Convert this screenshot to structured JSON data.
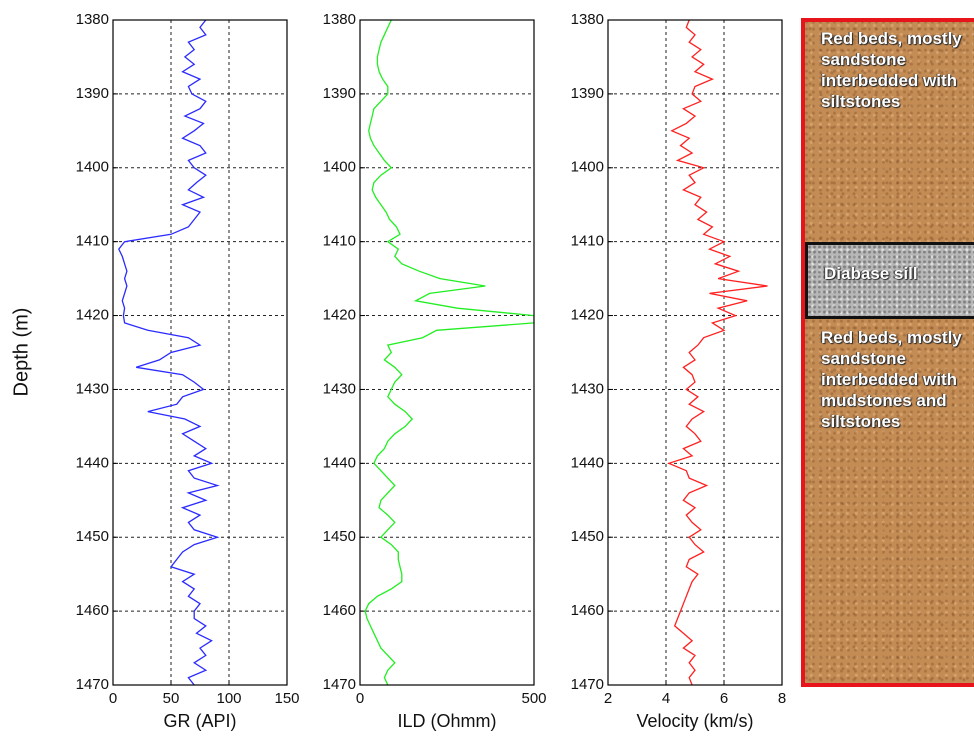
{
  "chart_data": [
    {
      "type": "line",
      "x_label": "GR (API)",
      "y_label": "Depth (m)",
      "color": "#2b2bff",
      "xlim": [
        0,
        150
      ],
      "xticks": [
        0,
        50,
        100,
        150
      ],
      "ylim": [
        1380,
        1470
      ],
      "yticks": [
        1380,
        1390,
        1400,
        1410,
        1420,
        1430,
        1440,
        1450,
        1460,
        1470
      ],
      "y_reversed": true,
      "grid": true,
      "y": [
        1380,
        1381,
        1382,
        1383,
        1384,
        1385,
        1386,
        1387,
        1388,
        1389,
        1390,
        1391,
        1392,
        1393,
        1394,
        1395,
        1396,
        1397,
        1398,
        1399,
        1400,
        1401,
        1402,
        1403,
        1404,
        1405,
        1406,
        1407,
        1408,
        1409,
        1410,
        1411,
        1412,
        1413,
        1414,
        1415,
        1416,
        1417,
        1418,
        1419,
        1420,
        1421,
        1422,
        1423,
        1424,
        1425,
        1426,
        1427,
        1428,
        1429,
        1430,
        1431,
        1432,
        1433,
        1434,
        1435,
        1436,
        1437,
        1438,
        1439,
        1440,
        1441,
        1442,
        1443,
        1444,
        1445,
        1446,
        1447,
        1448,
        1449,
        1450,
        1451,
        1452,
        1453,
        1454,
        1455,
        1456,
        1457,
        1458,
        1459,
        1460,
        1461,
        1462,
        1463,
        1464,
        1465,
        1466,
        1467,
        1468,
        1469,
        1470
      ],
      "values": [
        80,
        75,
        80,
        65,
        70,
        62,
        70,
        60,
        75,
        65,
        68,
        80,
        75,
        62,
        78,
        70,
        60,
        75,
        80,
        65,
        70,
        80,
        72,
        65,
        78,
        60,
        75,
        70,
        65,
        50,
        10,
        5,
        8,
        10,
        12,
        10,
        12,
        10,
        8,
        10,
        9,
        10,
        30,
        65,
        75,
        50,
        40,
        20,
        60,
        70,
        78,
        60,
        55,
        30,
        62,
        75,
        60,
        70,
        80,
        70,
        85,
        65,
        70,
        90,
        65,
        80,
        60,
        75,
        65,
        70,
        90,
        70,
        60,
        55,
        50,
        70,
        60,
        70,
        65,
        75,
        70,
        70,
        80,
        72,
        85,
        75,
        80,
        70,
        80,
        65,
        70
      ]
    },
    {
      "type": "line",
      "x_label": "ILD (Ohmm)",
      "color": "#22ee22",
      "xlim": [
        0,
        500
      ],
      "xticks": [
        0,
        500
      ],
      "ylim": [
        1380,
        1470
      ],
      "yticks": [
        1380,
        1390,
        1400,
        1410,
        1420,
        1430,
        1440,
        1450,
        1460,
        1470
      ],
      "y_reversed": true,
      "grid": true,
      "y": [
        1380,
        1381,
        1382,
        1383,
        1384,
        1385,
        1386,
        1387,
        1388,
        1389,
        1390,
        1391,
        1392,
        1393,
        1394,
        1395,
        1396,
        1397,
        1398,
        1399,
        1400,
        1401,
        1402,
        1403,
        1404,
        1405,
        1406,
        1407,
        1408,
        1409,
        1410,
        1411,
        1412,
        1413,
        1414,
        1415,
        1416,
        1417,
        1418,
        1419,
        1420,
        1421,
        1422,
        1423,
        1424,
        1425,
        1426,
        1427,
        1428,
        1429,
        1430,
        1431,
        1432,
        1433,
        1434,
        1435,
        1436,
        1437,
        1438,
        1439,
        1440,
        1441,
        1442,
        1443,
        1444,
        1445,
        1446,
        1447,
        1448,
        1449,
        1450,
        1451,
        1452,
        1453,
        1454,
        1455,
        1456,
        1457,
        1458,
        1459,
        1460,
        1461,
        1462,
        1463,
        1464,
        1465,
        1466,
        1467,
        1468,
        1469,
        1470
      ],
      "values": [
        90,
        80,
        70,
        60,
        55,
        50,
        50,
        55,
        65,
        80,
        80,
        60,
        40,
        35,
        30,
        25,
        30,
        40,
        55,
        70,
        90,
        60,
        40,
        35,
        45,
        60,
        75,
        85,
        105,
        115,
        80,
        110,
        100,
        120,
        170,
        230,
        360,
        200,
        160,
        280,
        500,
        500,
        220,
        180,
        80,
        90,
        70,
        100,
        120,
        100,
        90,
        80,
        100,
        130,
        150,
        130,
        100,
        80,
        70,
        50,
        40,
        60,
        80,
        100,
        80,
        60,
        55,
        80,
        100,
        80,
        60,
        90,
        110,
        110,
        115,
        120,
        120,
        90,
        50,
        25,
        15,
        20,
        30,
        40,
        50,
        60,
        80,
        100,
        80,
        70,
        80
      ]
    },
    {
      "type": "line",
      "x_label": "Velocity (km/s)",
      "color": "#ff2020",
      "xlim": [
        2,
        8
      ],
      "xticks": [
        2,
        4,
        6,
        8
      ],
      "ylim": [
        1380,
        1470
      ],
      "yticks": [
        1380,
        1390,
        1400,
        1410,
        1420,
        1430,
        1440,
        1450,
        1460,
        1470
      ],
      "y_reversed": true,
      "grid": true,
      "y": [
        1380,
        1381,
        1382,
        1383,
        1384,
        1385,
        1386,
        1387,
        1388,
        1389,
        1390,
        1391,
        1392,
        1393,
        1394,
        1395,
        1396,
        1397,
        1398,
        1399,
        1400,
        1401,
        1402,
        1403,
        1404,
        1405,
        1406,
        1407,
        1408,
        1409,
        1410,
        1411,
        1412,
        1413,
        1414,
        1415,
        1416,
        1417,
        1418,
        1419,
        1420,
        1421,
        1422,
        1423,
        1424,
        1425,
        1426,
        1427,
        1428,
        1429,
        1430,
        1431,
        1432,
        1433,
        1434,
        1435,
        1436,
        1437,
        1438,
        1439,
        1440,
        1441,
        1442,
        1443,
        1444,
        1445,
        1446,
        1447,
        1448,
        1449,
        1450,
        1451,
        1452,
        1453,
        1454,
        1455,
        1456,
        1457,
        1458,
        1459,
        1460,
        1461,
        1462,
        1463,
        1464,
        1465,
        1466,
        1467,
        1468,
        1469,
        1470
      ],
      "values": [
        4.8,
        4.7,
        5.0,
        4.8,
        5.2,
        4.9,
        5.3,
        5.0,
        5.6,
        5.0,
        4.9,
        5.2,
        4.6,
        5.0,
        4.7,
        4.2,
        4.8,
        4.5,
        4.9,
        4.4,
        5.3,
        4.8,
        5.0,
        4.6,
        5.2,
        5.0,
        5.4,
        5.1,
        5.6,
        5.3,
        6.0,
        5.5,
        6.2,
        5.7,
        6.5,
        5.8,
        7.5,
        5.5,
        6.8,
        5.8,
        6.4,
        5.6,
        6.0,
        5.3,
        5.1,
        4.8,
        5.0,
        4.6,
        4.9,
        5.0,
        4.7,
        5.1,
        4.8,
        5.3,
        4.9,
        4.7,
        5.0,
        5.2,
        4.6,
        4.9,
        4.1,
        4.7,
        4.8,
        5.4,
        4.8,
        4.6,
        5.0,
        4.7,
        4.9,
        5.2,
        4.8,
        5.0,
        5.3,
        4.8,
        4.7,
        5.1,
        4.9,
        4.8,
        4.7,
        4.6,
        4.5,
        4.4,
        4.3,
        4.6,
        4.9,
        4.6,
        5.0,
        4.8,
        5.0,
        4.8,
        4.9
      ]
    }
  ],
  "lithology": {
    "layers": [
      {
        "label": "Red beds, mostly sandstone interbedded with siltstones",
        "top": 1380,
        "bottom": 1410,
        "kind": "sand"
      },
      {
        "label": "Diabase sill",
        "top": 1410,
        "bottom": 1420.5,
        "kind": "diabase"
      },
      {
        "label": "Red beds, mostly sandstone interbedded with mudstones and siltstones",
        "top": 1420.5,
        "bottom": 1470,
        "kind": "sand"
      }
    ]
  }
}
